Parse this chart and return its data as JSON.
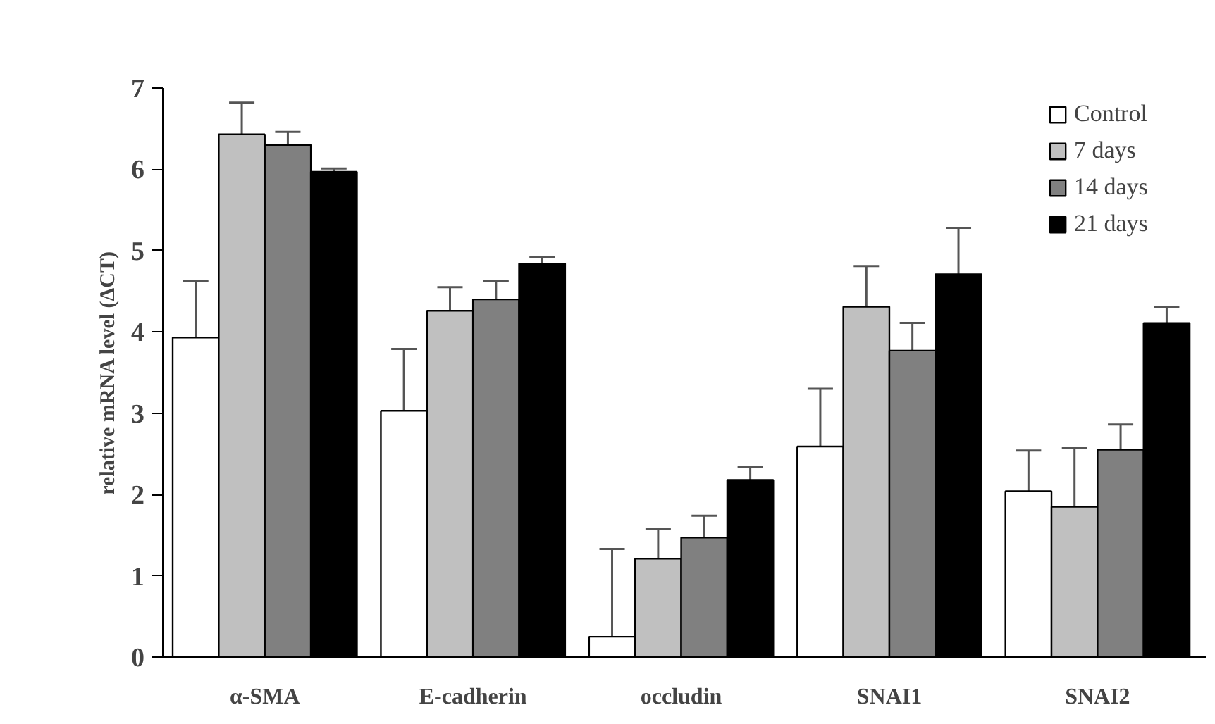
{
  "chart_data": {
    "type": "bar",
    "ylabel": "relative mRNA level (ΔCT)",
    "categories": [
      "α-SMA",
      "E-cadherin",
      "occludin",
      "SNAI1",
      "SNAI2"
    ],
    "series": [
      {
        "name": "Control",
        "color": "#ffffff",
        "values": [
          3.93,
          3.03,
          0.25,
          2.59,
          2.04
        ],
        "errors": [
          [
            3.93,
            4.63
          ],
          [
            3.03,
            3.79
          ],
          [
            0.25,
            1.33
          ],
          [
            2.59,
            3.3
          ],
          [
            2.04,
            2.54
          ]
        ]
      },
      {
        "name": "7 days",
        "color": "#c0c0c0",
        "values": [
          6.43,
          4.26,
          1.21,
          4.31,
          1.85
        ],
        "errors": [
          [
            6.43,
            6.82
          ],
          [
            4.26,
            4.55
          ],
          [
            1.21,
            1.58
          ],
          [
            4.31,
            4.81
          ],
          [
            1.85,
            2.57
          ]
        ]
      },
      {
        "name": "14 days",
        "color": "#808080",
        "values": [
          6.3,
          4.4,
          1.47,
          3.77,
          2.55
        ],
        "errors": [
          [
            6.3,
            6.46
          ],
          [
            4.4,
            4.63
          ],
          [
            1.47,
            1.74
          ],
          [
            3.77,
            4.11
          ],
          [
            2.55,
            2.86
          ]
        ]
      },
      {
        "name": "21 days",
        "color": "#000000",
        "values": [
          5.97,
          4.84,
          2.18,
          4.71,
          4.11
        ],
        "errors": [
          [
            5.97,
            6.01
          ],
          [
            4.84,
            4.92
          ],
          [
            2.18,
            2.34
          ],
          [
            4.71,
            5.28
          ],
          [
            4.11,
            4.31
          ]
        ]
      }
    ],
    "ylim": [
      0,
      7
    ],
    "yticks": [
      0,
      1,
      2,
      3,
      4,
      5,
      6,
      7
    ],
    "grid": false,
    "legend": "top right"
  }
}
